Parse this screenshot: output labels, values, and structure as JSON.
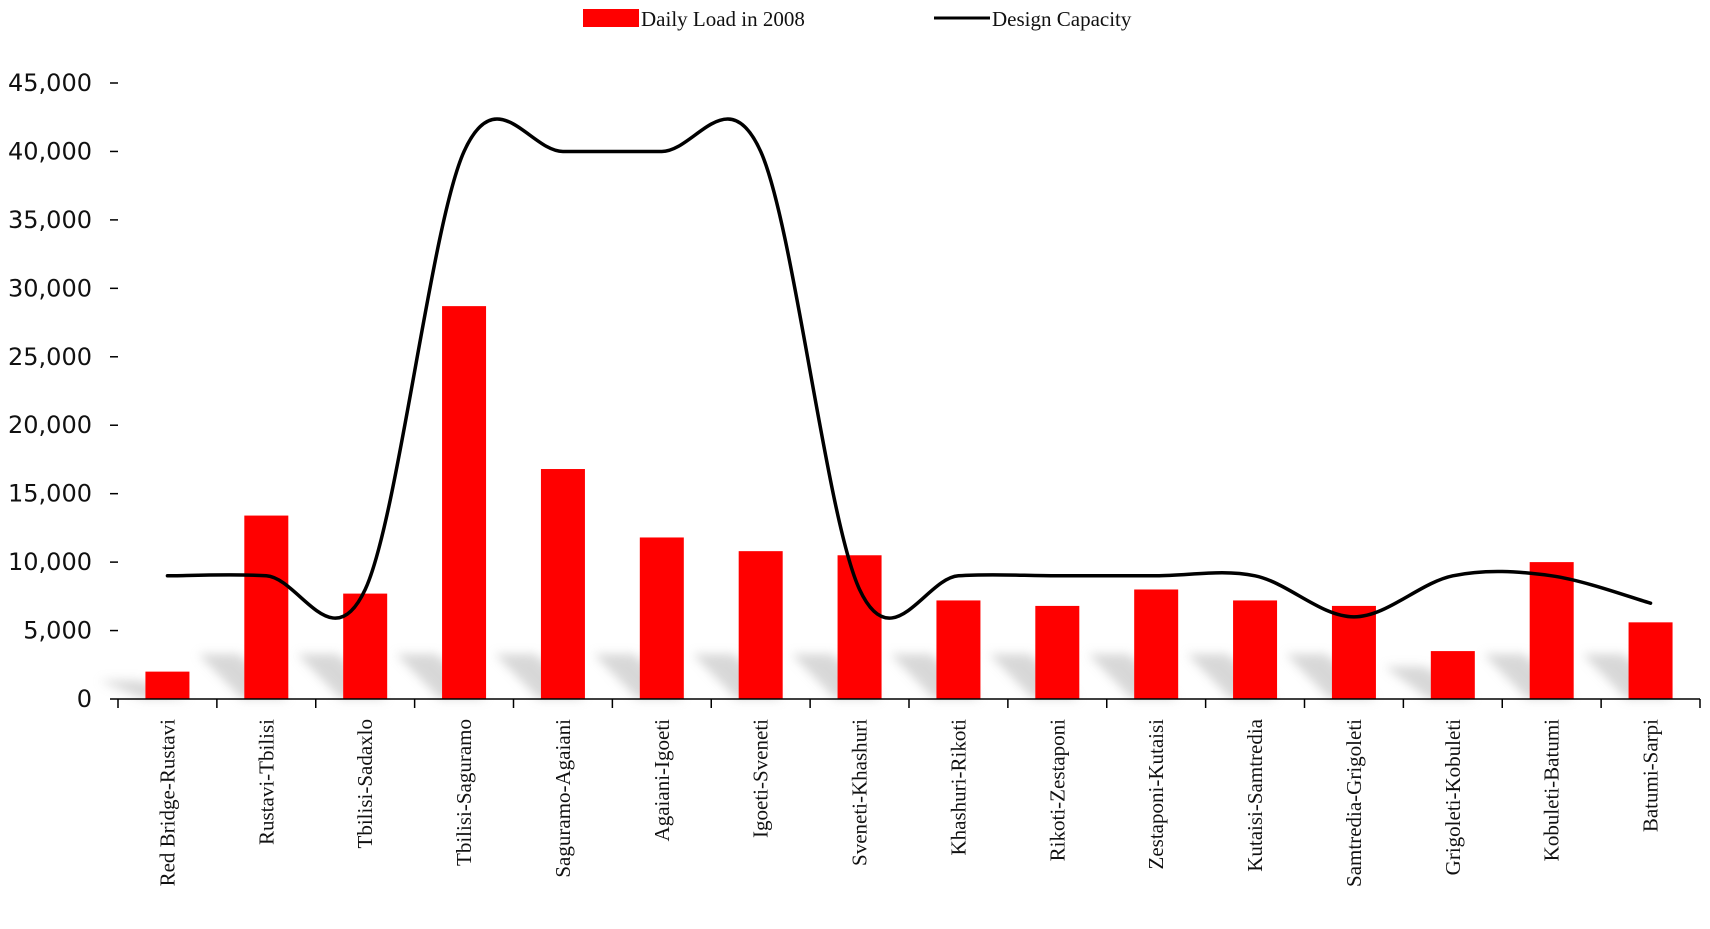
{
  "chart_data": {
    "type": "bar",
    "categories": [
      "Red Bridge-Rustavi",
      "Rustavi-Tbilisi",
      "Tbilisi-Sadaxlo",
      "Tbilisi-Saguramo",
      "Saguramo-Agaiani",
      "Agaiani-Igoeti",
      "Igoeti-Sveneti",
      "Sveneti-Khashuri",
      "Khashuri-Rikoti",
      "Rikoti-Zestaponi",
      "Zestaponi-Kutaisi",
      "Kutaisi-Samtredia",
      "Samtredia-Grigoleti",
      "Grigoleti-Kobuleti",
      "Kobuleti-Batumi",
      "Batumi-Sarpi"
    ],
    "series": [
      {
        "name": "Daily Load in 2008",
        "type": "bar",
        "color": "#ff0000",
        "values": [
          2000,
          13400,
          7700,
          28700,
          16800,
          11800,
          10800,
          10500,
          7200,
          6800,
          8000,
          7200,
          6800,
          3500,
          10000,
          5600
        ]
      },
      {
        "name": "Design Capacity",
        "type": "line",
        "color": "#000000",
        "values": [
          9000,
          9000,
          8000,
          40000,
          40000,
          40000,
          40000,
          8000,
          9000,
          9000,
          9000,
          9000,
          6000,
          9000,
          9000,
          7000
        ]
      }
    ],
    "yticks": [
      "0",
      "5,000",
      "10,000",
      "15,000",
      "20,000",
      "25,000",
      "30,000",
      "35,000",
      "40,000",
      "45,000"
    ],
    "ylim": [
      0,
      45000
    ],
    "legend_position": "top-center",
    "grid": false
  }
}
